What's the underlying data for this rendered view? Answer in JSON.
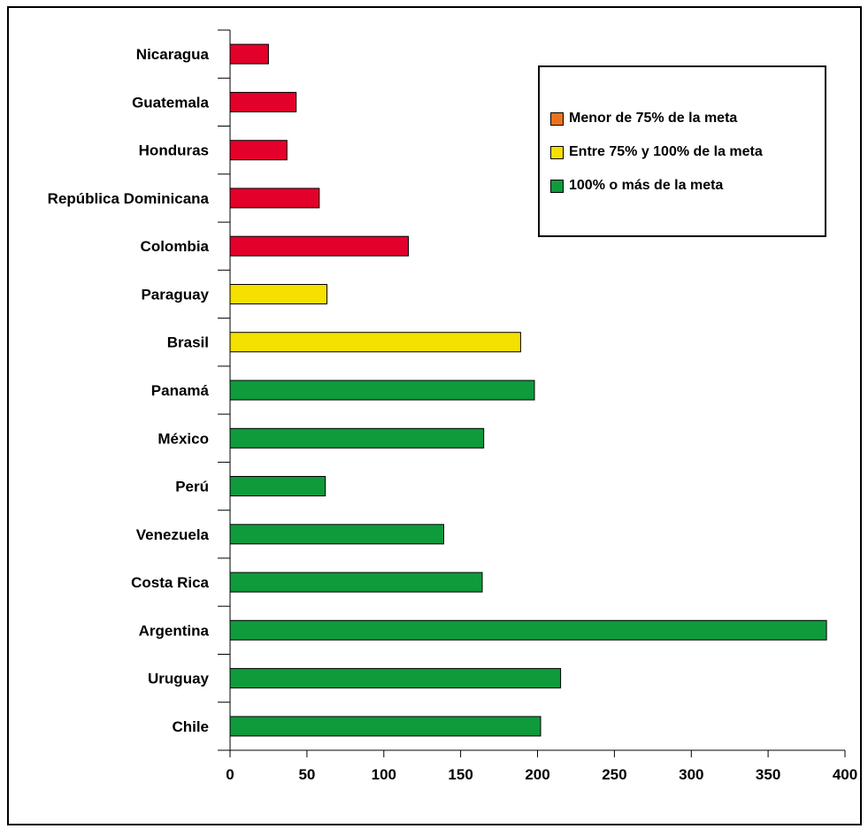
{
  "chart_data": {
    "type": "bar",
    "orientation": "horizontal",
    "categories": [
      "Nicaragua",
      "Guatemala",
      "Honduras",
      "República Dominicana",
      "Colombia",
      "Paraguay",
      "Brasil",
      "Panamá",
      "México",
      "Perú",
      "Venezuela",
      "Costa Rica",
      "Argentina",
      "Uruguay",
      "Chile"
    ],
    "values": [
      25,
      43,
      37,
      58,
      116,
      63,
      189,
      198,
      165,
      62,
      139,
      164,
      388,
      215,
      202
    ],
    "bar_groups": [
      "lt75",
      "lt75",
      "lt75",
      "lt75",
      "lt75",
      "75to100",
      "75to100",
      "ge100",
      "ge100",
      "ge100",
      "ge100",
      "ge100",
      "ge100",
      "ge100",
      "ge100"
    ],
    "xlim": [
      0,
      400
    ],
    "xticks": [
      0,
      50,
      100,
      150,
      200,
      250,
      300,
      350,
      400
    ],
    "grid": false,
    "legend_position": "top-right",
    "legend": [
      {
        "key": "lt75",
        "label": "Menor de 75% de la meta",
        "swatch_color": "#e8731c"
      },
      {
        "key": "75to100",
        "label": "Entre 75% y 100% de la meta",
        "swatch_color": "#f5e000"
      },
      {
        "key": "ge100",
        "label": "100% o más de la meta",
        "swatch_color": "#0f9a3c"
      }
    ],
    "bar_colors": {
      "lt75": "#e3002b",
      "75to100": "#f5e000",
      "ge100": "#0f9a3c"
    }
  }
}
